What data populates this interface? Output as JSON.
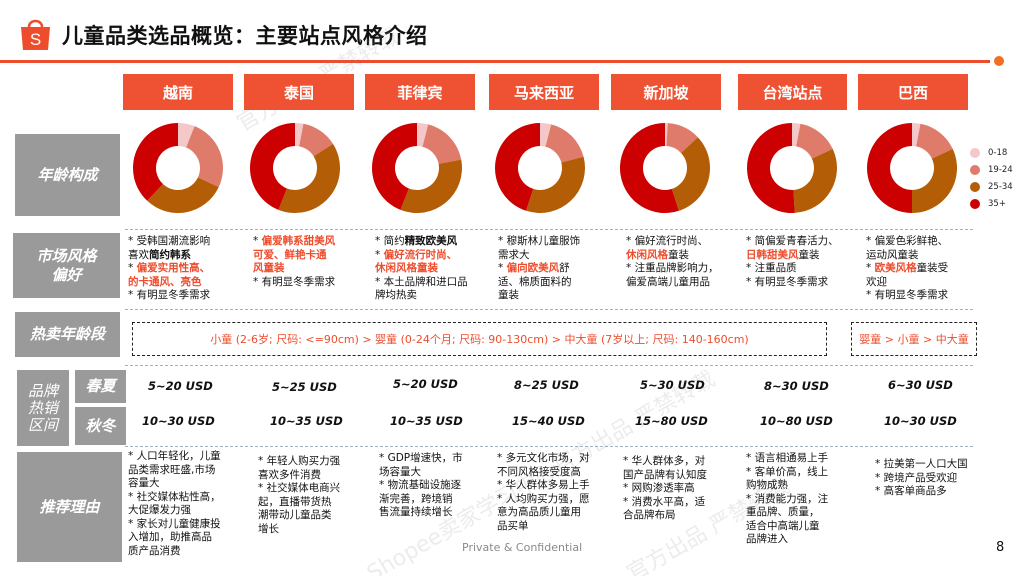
{
  "header": {
    "logo_icon": "shopee-bag-icon",
    "logo_letter": "S",
    "title": "儿童品类选品概览：主要站点风格介绍",
    "accent_color": "#ee4d2d"
  },
  "sites": [
    {
      "name": "越南"
    },
    {
      "name": "泰国"
    },
    {
      "name": "菲律宾"
    },
    {
      "name": "马来西亚"
    },
    {
      "name": "新加坡"
    },
    {
      "name": "台湾站点"
    },
    {
      "name": "巴西"
    }
  ],
  "row_labels": {
    "age": "年龄构成",
    "style_line1": "市场风格",
    "style_line2": "偏好",
    "hot_age": "热卖年龄段",
    "price_line1": "品牌",
    "price_line2": "热销",
    "price_line3": "区间",
    "spring_summer": "春夏",
    "autumn_winter": "秋冬",
    "reasons": "推荐理由"
  },
  "chart_data": {
    "type": "pie",
    "variant": "donut",
    "title": "年龄构成",
    "categories": [
      "越南",
      "泰国",
      "菲律宾",
      "马来西亚",
      "新加坡",
      "台湾站点",
      "巴西"
    ],
    "legend": [
      "0-18",
      "19-24",
      "25-34",
      "35+"
    ],
    "legend_position": "right",
    "colors": [
      "#f4c7c8",
      "#df7b6b",
      "#b35e07",
      "#cc0000"
    ],
    "series": [
      {
        "site": "越南",
        "values": [
          6,
          26,
          30,
          38
        ]
      },
      {
        "site": "泰国",
        "values": [
          3,
          13,
          40,
          44
        ]
      },
      {
        "site": "菲律宾",
        "values": [
          4,
          18,
          34,
          44
        ]
      },
      {
        "site": "马来西亚",
        "values": [
          4,
          17,
          34,
          45
        ]
      },
      {
        "site": "新加坡",
        "values": [
          1,
          12,
          32,
          55
        ]
      },
      {
        "site": "台湾站点",
        "values": [
          3,
          15,
          31,
          51
        ]
      },
      {
        "site": "巴西",
        "values": [
          3,
          15,
          32,
          50
        ]
      }
    ]
  },
  "style_prefs": [
    [
      {
        "parts": [
          {
            "t": "* 受韩国潮流影响"
          }
        ]
      },
      {
        "parts": [
          {
            "t": "喜欢"
          },
          {
            "t": "简约韩系",
            "c": "b"
          }
        ]
      },
      {
        "parts": [
          {
            "t": "* "
          },
          {
            "t": "偏爱实用性高、",
            "c": "hl"
          }
        ]
      },
      {
        "parts": [
          {
            "t": "的卡通风、亮色",
            "c": "hl"
          }
        ]
      },
      {
        "parts": [
          {
            "t": "* 有明显冬季需求"
          }
        ]
      }
    ],
    [
      {
        "parts": [
          {
            "t": "* "
          },
          {
            "t": "偏爱韩系甜美风",
            "c": "hl"
          }
        ]
      },
      {
        "parts": [
          {
            "t": "可爱、鲜艳卡通",
            "c": "hl"
          }
        ]
      },
      {
        "parts": [
          {
            "t": "风童装",
            "c": "hl"
          }
        ]
      },
      {
        "parts": [
          {
            "t": "* 有明显冬季需求"
          }
        ]
      }
    ],
    [
      {
        "parts": [
          {
            "t": "* 简约"
          },
          {
            "t": "精致欧美风",
            "c": "b"
          }
        ]
      },
      {
        "parts": [
          {
            "t": "* "
          },
          {
            "t": "偏好流行时尚、",
            "c": "hl"
          }
        ]
      },
      {
        "parts": [
          {
            "t": "休闲风格童装",
            "c": "hl"
          }
        ]
      },
      {
        "parts": [
          {
            "t": "* 本土品牌和进口品"
          }
        ]
      },
      {
        "parts": [
          {
            "t": "牌均热卖"
          }
        ]
      }
    ],
    [
      {
        "parts": [
          {
            "t": "* 穆斯林儿童服饰"
          }
        ]
      },
      {
        "parts": [
          {
            "t": "需求大"
          }
        ]
      },
      {
        "parts": [
          {
            "t": "* "
          },
          {
            "t": "偏向欧美风",
            "c": "hl"
          },
          {
            "t": "舒"
          }
        ]
      },
      {
        "parts": [
          {
            "t": "适、棉质面料的"
          }
        ]
      },
      {
        "parts": [
          {
            "t": "童装"
          }
        ]
      }
    ],
    [
      {
        "parts": [
          {
            "t": "* 偏好流行时尚、"
          }
        ]
      },
      {
        "parts": [
          {
            "t": "休闲风格",
            "c": "hl"
          },
          {
            "t": "童装"
          }
        ]
      },
      {
        "parts": [
          {
            "t": "* 注重品牌影响力，"
          }
        ]
      },
      {
        "parts": [
          {
            "t": "偏爱高端儿童用品"
          }
        ]
      }
    ],
    [
      {
        "parts": [
          {
            "t": "* 简偏爱青春活力、"
          }
        ]
      },
      {
        "parts": [
          {
            "t": "日韩甜美风",
            "c": "hl"
          },
          {
            "t": "童装"
          }
        ]
      },
      {
        "parts": [
          {
            "t": "* 注重品质"
          }
        ]
      },
      {
        "parts": [
          {
            "t": "* 有明显冬季需求"
          }
        ]
      }
    ],
    [
      {
        "parts": [
          {
            "t": "* 偏爱色彩鲜艳、"
          }
        ]
      },
      {
        "parts": [
          {
            "t": "运动风童装"
          }
        ]
      },
      {
        "parts": [
          {
            "t": "* "
          },
          {
            "t": "欧美风格",
            "c": "hl"
          },
          {
            "t": "童装受"
          }
        ]
      },
      {
        "parts": [
          {
            "t": "欢迎"
          }
        ]
      },
      {
        "parts": [
          {
            "t": "* 有明显冬季需求"
          }
        ]
      }
    ]
  ],
  "hot_age": {
    "main": "小童 (2-6岁; 尺码: <=90cm) > 婴童 (0-24个月; 尺码: 90-130cm) > 中大童 (7岁以上; 尺码: 140-160cm)",
    "brazil": "婴童 > 小童 > 中大童"
  },
  "prices": {
    "spring_summer": [
      "5~20 USD",
      "5~25 USD",
      "5~20 USD",
      "8~25 USD",
      "5~30 USD",
      "8~30 USD",
      "6~30 USD"
    ],
    "autumn_winter": [
      "10~30 USD",
      "10~35 USD",
      "10~35 USD",
      "15~40 USD",
      "15~80 USD",
      "10~80 USD",
      "10~30 USD"
    ]
  },
  "reasons": [
    [
      "* 人口年轻化，儿童",
      "品类需求旺盛,市场",
      "容量大",
      "* 社交媒体粘性高，",
      "大促爆发力强",
      "* 家长对儿童健康投",
      "入增加，助推高品",
      "质产品消费"
    ],
    [
      "* 年轻人购买力强",
      "喜欢多件消费",
      "* 社交媒体电商兴",
      "起，直播带货热",
      "潮带动儿童品类",
      "增长"
    ],
    [
      "* GDP增速快，市",
      "场容量大",
      "* 物流基础设施逐",
      "渐完善，跨境销",
      "售流量持续增长"
    ],
    [
      "* 多元文化市场，对",
      "不同风格接受度高",
      "* 华人群体多易上手",
      "* 人均购买力强，愿",
      "意为高品质儿童用",
      "品买单"
    ],
    [
      "* 华人群体多，对",
      "国产品牌有认知度",
      "* 网购渗透率高",
      "* 消费水平高，适",
      "合品牌布局"
    ],
    [
      "* 语言相通易上手",
      "* 客单价高，线上",
      "购物成熟",
      "* 消费能力强，注",
      "重品牌、质量，",
      "适合中高端儿童",
      "品牌进入"
    ],
    [
      "* 拉美第一人口大国",
      "* 跨境产品受欢迎",
      "* 高客单商品多"
    ]
  ],
  "footer": {
    "confidential": "Private & Confidential",
    "page_number": "8"
  },
  "watermarks": [
    "官方出品 严禁转载",
    "Shopee卖家学习中心官方出品 严禁转载"
  ]
}
